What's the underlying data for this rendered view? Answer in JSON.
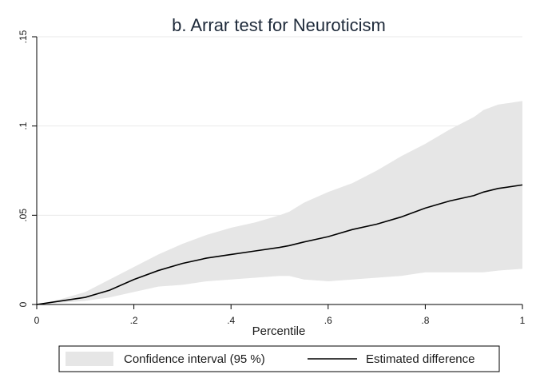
{
  "chart_data": {
    "type": "area",
    "title": "b. Arrar test for Neuroticism",
    "xlabel": "Percentile",
    "ylabel": "",
    "xlim": [
      0,
      1
    ],
    "ylim": [
      0,
      0.15
    ],
    "xticks": [
      0,
      0.2,
      0.4,
      0.6,
      0.8,
      1.0
    ],
    "xtick_labels": [
      "0",
      ".2",
      ".4",
      ".6",
      ".8",
      "1"
    ],
    "yticks": [
      0,
      0.05,
      0.1,
      0.15
    ],
    "ytick_labels": [
      "0",
      ".05",
      ".1",
      ".15"
    ],
    "grid": "horizontal",
    "legend_position": "bottom",
    "colors": {
      "band": "#e6e6e6",
      "line": "#000000",
      "grid": "#e9e9e9",
      "axis": "#000000"
    },
    "x": [
      0,
      0.05,
      0.1,
      0.15,
      0.2,
      0.25,
      0.3,
      0.35,
      0.4,
      0.45,
      0.5,
      0.52,
      0.55,
      0.6,
      0.65,
      0.7,
      0.75,
      0.8,
      0.85,
      0.9,
      0.92,
      0.95,
      1.0
    ],
    "series": [
      {
        "name": "Confidence interval (95 %)",
        "kind": "band",
        "lower": [
          0,
          0.001,
          0.002,
          0.004,
          0.007,
          0.01,
          0.011,
          0.013,
          0.014,
          0.015,
          0.016,
          0.016,
          0.014,
          0.013,
          0.014,
          0.015,
          0.016,
          0.018,
          0.018,
          0.018,
          0.018,
          0.019,
          0.02
        ],
        "upper": [
          0,
          0.003,
          0.007,
          0.014,
          0.021,
          0.028,
          0.034,
          0.039,
          0.043,
          0.046,
          0.05,
          0.052,
          0.057,
          0.063,
          0.068,
          0.075,
          0.083,
          0.09,
          0.098,
          0.105,
          0.109,
          0.112,
          0.114
        ]
      },
      {
        "name": "Estimated difference",
        "kind": "line",
        "values": [
          0,
          0.002,
          0.004,
          0.008,
          0.014,
          0.019,
          0.023,
          0.026,
          0.028,
          0.03,
          0.032,
          0.033,
          0.035,
          0.038,
          0.042,
          0.045,
          0.049,
          0.054,
          0.058,
          0.061,
          0.063,
          0.065,
          0.067
        ]
      }
    ]
  }
}
